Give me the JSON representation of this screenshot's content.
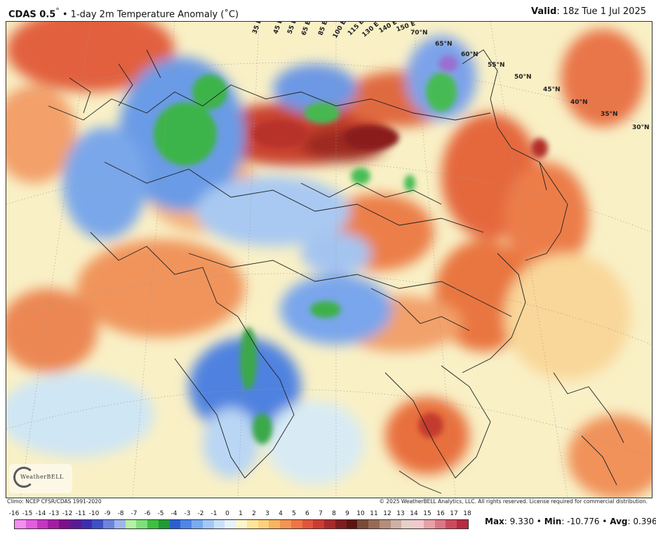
{
  "header": {
    "model": "CDAS 0.5",
    "degree": "°",
    "bullet": " • ",
    "description": "1-day 2m Temperature Anomaly (˚C)",
    "valid_label": "Valid",
    "valid_value": ": 18z Tue 1 Jul 2025"
  },
  "map": {
    "lon_labels": [
      "35 E",
      "45 E",
      "55 E",
      "65 E",
      "85 E",
      "100 E",
      "115 E",
      "130 E",
      "140 E",
      "150 E",
      "70°N"
    ],
    "lat_labels": [
      "65°N",
      "60°N",
      "55°N",
      "50°N",
      "45°N",
      "40°N",
      "35°N",
      "30°N"
    ],
    "logo_text": "WeatherBELL"
  },
  "footer": {
    "climo": "Climo: NCEP CFSR/CDAS 1991-2020",
    "copyright": "© 2025 WeatherBELL Analytics, LLC. All rights reserved. License required for commercial distribution."
  },
  "colorbar": {
    "labels": [
      "-16",
      "-15",
      "-14",
      "-13",
      "-12",
      "-11",
      "-10",
      "-9",
      "-8",
      "-7",
      "-6",
      "-5",
      "-4",
      "-3",
      "-2",
      "-1",
      "0",
      "1",
      "2",
      "3",
      "4",
      "5",
      "6",
      "7",
      "8",
      "9",
      "10",
      "11",
      "12",
      "13",
      "14",
      "15",
      "16",
      "17",
      "18"
    ],
    "colors": [
      "#f48ef0",
      "#e35ce0",
      "#c634c2",
      "#a41ca5",
      "#7d0f8a",
      "#5a1a96",
      "#3b2fb0",
      "#3f4fc8",
      "#6c84de",
      "#9fb5ee",
      "#b4f0a6",
      "#7ee07a",
      "#3cc040",
      "#1f9b34",
      "#2a5fd4",
      "#4d86e8",
      "#79aaf2",
      "#a3c8f6",
      "#c9e1f8",
      "#e6f1fa",
      "#fbf6cc",
      "#fde69a",
      "#fcd27a",
      "#f8b45f",
      "#f49550",
      "#ee7544",
      "#e2553a",
      "#cc3a32",
      "#a72a2a",
      "#7e1c1e",
      "#5a1512",
      "#7a4a38",
      "#986a56",
      "#b58d7c",
      "#cfb0a4",
      "#e6d0c8",
      "#f2c9cc",
      "#e8a0a8",
      "#dc7685",
      "#cc4a5e",
      "#b92b3e"
    ]
  },
  "stats": {
    "max_label": "Max",
    "max_value": ": 9.330 • ",
    "min_label": "Min",
    "min_value": ": -10.776 • ",
    "avg_label": "Avg",
    "avg_value": ": 0.396"
  }
}
